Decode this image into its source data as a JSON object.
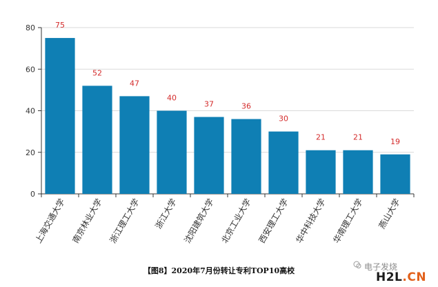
{
  "chart_data": {
    "type": "bar",
    "categories": [
      "上海交通大学",
      "南京林业大学",
      "浙江理工大学",
      "浙江大学",
      "沈阳建筑大学",
      "北京工业大学",
      "西安理工大学",
      "华中科技大学",
      "华南理工大学",
      "燕山大学"
    ],
    "values": [
      75,
      52,
      47,
      40,
      37,
      36,
      30,
      21,
      21,
      19
    ],
    "ylim": [
      0,
      80
    ],
    "yticks": [
      0,
      20,
      40,
      60,
      80
    ],
    "grid": true,
    "bar_color": "#0f7fb4",
    "label_color": "#d42b2b"
  },
  "caption": "【图8】2020年7月份转让专利TOP10高校",
  "watermark": {
    "small": "电子发烧",
    "big_prefix": "H2L",
    "big_suffix": ".CN",
    "accent_color": "#e2611b"
  }
}
